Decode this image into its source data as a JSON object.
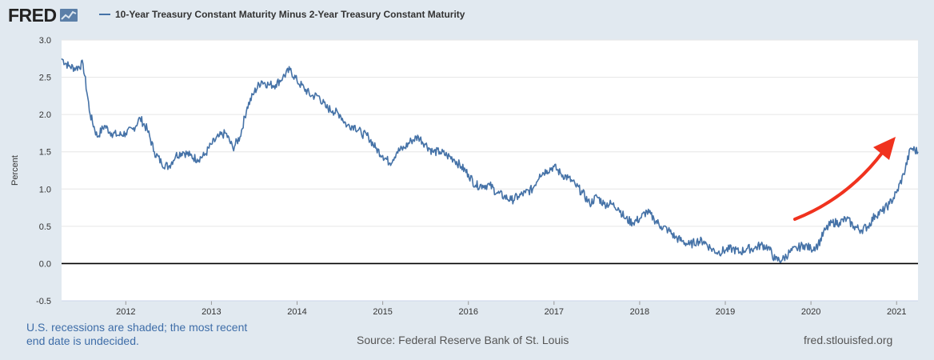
{
  "header": {
    "logo_text": "FRED",
    "logo_icon": "graph-icon",
    "legend_label": "10-Year Treasury Constant Maturity Minus 2-Year Treasury Constant Maturity"
  },
  "footer": {
    "recession_note": "U.S. recessions are shaded; the most recent end date is undecided.",
    "source": "Source: Federal Reserve Bank of St. Louis",
    "site": "fred.stlouisfed.org"
  },
  "colors": {
    "series": "#4572a7",
    "arrow": "#f0321e",
    "background": "#e1e9f0",
    "plot": "#ffffff"
  },
  "chart_data": {
    "type": "line",
    "title": "",
    "xlabel": "",
    "ylabel": "Percent",
    "ylim": [
      -0.5,
      3.0
    ],
    "xlim": [
      "2011-04",
      "2021-04"
    ],
    "yticks": [
      "-0.5",
      "0.0",
      "0.5",
      "1.0",
      "1.5",
      "2.0",
      "2.5",
      "3.0"
    ],
    "xticks": [
      "2012",
      "2013",
      "2014",
      "2015",
      "2016",
      "2017",
      "2018",
      "2019",
      "2020",
      "2021"
    ],
    "grid": "horizontal",
    "zero_line": true,
    "annotation": "red arrow pointing up-right",
    "series": [
      {
        "name": "10-Year Treasury Constant Maturity Minus 2-Year Treasury Constant Maturity",
        "x": [
          "2011-04",
          "2011-05",
          "2011-06",
          "2011-07",
          "2011-08",
          "2011-09",
          "2011-10",
          "2011-11",
          "2011-12",
          "2012-01",
          "2012-02",
          "2012-03",
          "2012-04",
          "2012-05",
          "2012-06",
          "2012-07",
          "2012-08",
          "2012-09",
          "2012-10",
          "2012-11",
          "2012-12",
          "2013-01",
          "2013-02",
          "2013-03",
          "2013-04",
          "2013-05",
          "2013-06",
          "2013-07",
          "2013-08",
          "2013-09",
          "2013-10",
          "2013-11",
          "2013-12",
          "2014-01",
          "2014-02",
          "2014-03",
          "2014-04",
          "2014-05",
          "2014-06",
          "2014-07",
          "2014-08",
          "2014-09",
          "2014-10",
          "2014-11",
          "2014-12",
          "2015-01",
          "2015-02",
          "2015-03",
          "2015-04",
          "2015-05",
          "2015-06",
          "2015-07",
          "2015-08",
          "2015-09",
          "2015-10",
          "2015-11",
          "2015-12",
          "2016-01",
          "2016-02",
          "2016-03",
          "2016-04",
          "2016-05",
          "2016-06",
          "2016-07",
          "2016-08",
          "2016-09",
          "2016-10",
          "2016-11",
          "2016-12",
          "2017-01",
          "2017-02",
          "2017-03",
          "2017-04",
          "2017-05",
          "2017-06",
          "2017-07",
          "2017-08",
          "2017-09",
          "2017-10",
          "2017-11",
          "2017-12",
          "2018-01",
          "2018-02",
          "2018-03",
          "2018-04",
          "2018-05",
          "2018-06",
          "2018-07",
          "2018-08",
          "2018-09",
          "2018-10",
          "2018-11",
          "2018-12",
          "2019-01",
          "2019-02",
          "2019-03",
          "2019-04",
          "2019-05",
          "2019-06",
          "2019-07",
          "2019-08",
          "2019-09",
          "2019-10",
          "2019-11",
          "2019-12",
          "2020-01",
          "2020-02",
          "2020-03",
          "2020-04",
          "2020-05",
          "2020-06",
          "2020-07",
          "2020-08",
          "2020-09",
          "2020-10",
          "2020-11",
          "2020-12",
          "2021-01",
          "2021-02",
          "2021-03",
          "2021-04"
        ],
        "values": [
          2.75,
          2.65,
          2.62,
          2.68,
          2.0,
          1.7,
          1.85,
          1.75,
          1.72,
          1.75,
          1.8,
          1.95,
          1.8,
          1.5,
          1.35,
          1.3,
          1.45,
          1.5,
          1.45,
          1.4,
          1.45,
          1.6,
          1.7,
          1.75,
          1.55,
          1.7,
          2.1,
          2.3,
          2.45,
          2.4,
          2.4,
          2.5,
          2.6,
          2.45,
          2.35,
          2.25,
          2.25,
          2.1,
          2.05,
          2.0,
          1.85,
          1.85,
          1.75,
          1.7,
          1.55,
          1.45,
          1.35,
          1.5,
          1.55,
          1.65,
          1.7,
          1.6,
          1.5,
          1.5,
          1.45,
          1.4,
          1.3,
          1.2,
          1.05,
          1.05,
          1.05,
          0.95,
          0.9,
          0.85,
          0.9,
          0.95,
          1.0,
          1.2,
          1.25,
          1.3,
          1.2,
          1.15,
          1.05,
          0.95,
          0.8,
          0.9,
          0.8,
          0.8,
          0.75,
          0.6,
          0.55,
          0.6,
          0.7,
          0.6,
          0.5,
          0.45,
          0.35,
          0.3,
          0.25,
          0.3,
          0.3,
          0.2,
          0.15,
          0.18,
          0.2,
          0.15,
          0.2,
          0.2,
          0.25,
          0.22,
          0.05,
          0.05,
          0.15,
          0.2,
          0.25,
          0.2,
          0.25,
          0.45,
          0.55,
          0.55,
          0.6,
          0.5,
          0.45,
          0.5,
          0.65,
          0.7,
          0.8,
          0.95,
          1.2,
          1.55,
          1.5
        ]
      }
    ]
  }
}
